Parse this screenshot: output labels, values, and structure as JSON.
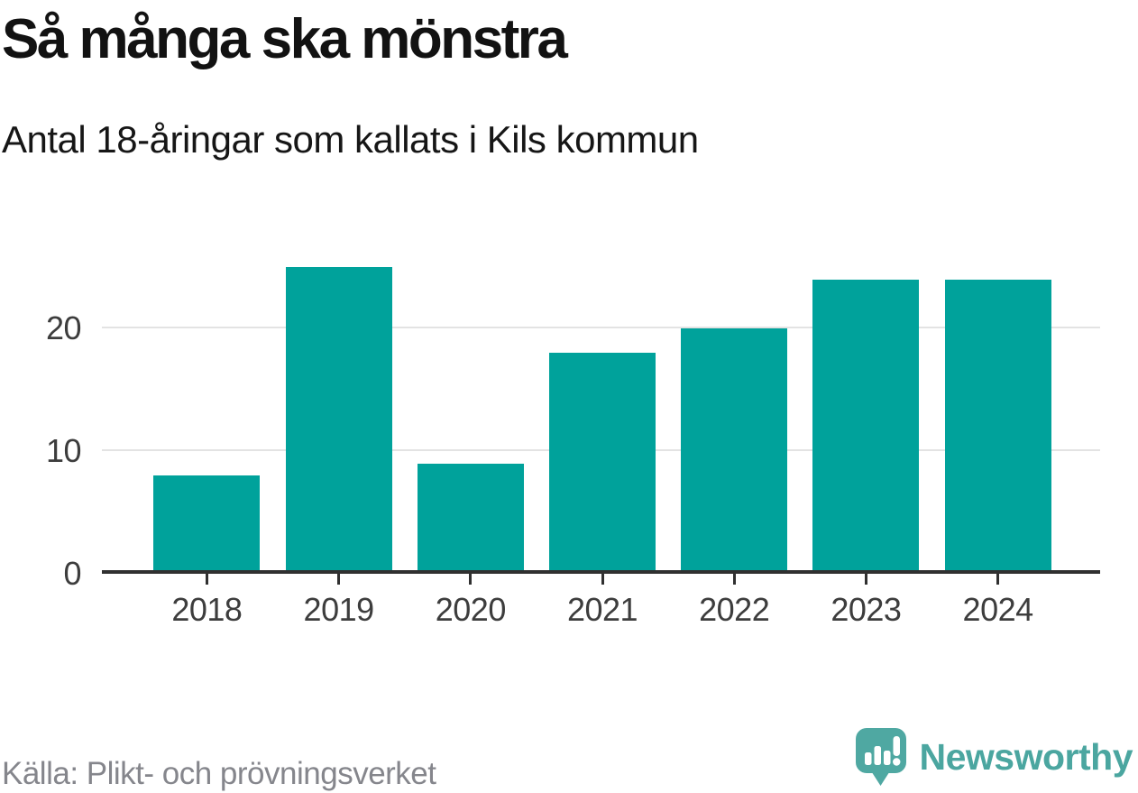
{
  "chart_data": {
    "type": "bar",
    "categories": [
      "2018",
      "2019",
      "2020",
      "2021",
      "2022",
      "2023",
      "2024"
    ],
    "values": [
      8,
      25,
      9,
      18,
      20,
      24,
      24
    ],
    "title": "Så många ska mönstra",
    "subtitle": "Antal 18-åringar som kallats i Kils kommun",
    "xlabel": "",
    "ylabel": "",
    "yticks": [
      0,
      10,
      20
    ],
    "ylim": [
      0,
      26
    ],
    "grid": "horizontal-light",
    "legend": "none",
    "bar_color": "#00a29b"
  },
  "footer": {
    "source": "Källa: Plikt- och prövningsverket",
    "brand_name": "Newsworthy"
  },
  "colors": {
    "bar": "#00a29b",
    "grid": "#e3e3e3",
    "axis": "#303030",
    "tick_label": "#3d3d3d",
    "title_text": "#121212",
    "subtitle_text": "#161616",
    "source_text": "#85868c",
    "brand_text": "#4ba6a0",
    "logo_fill": "#4fa8a2"
  }
}
